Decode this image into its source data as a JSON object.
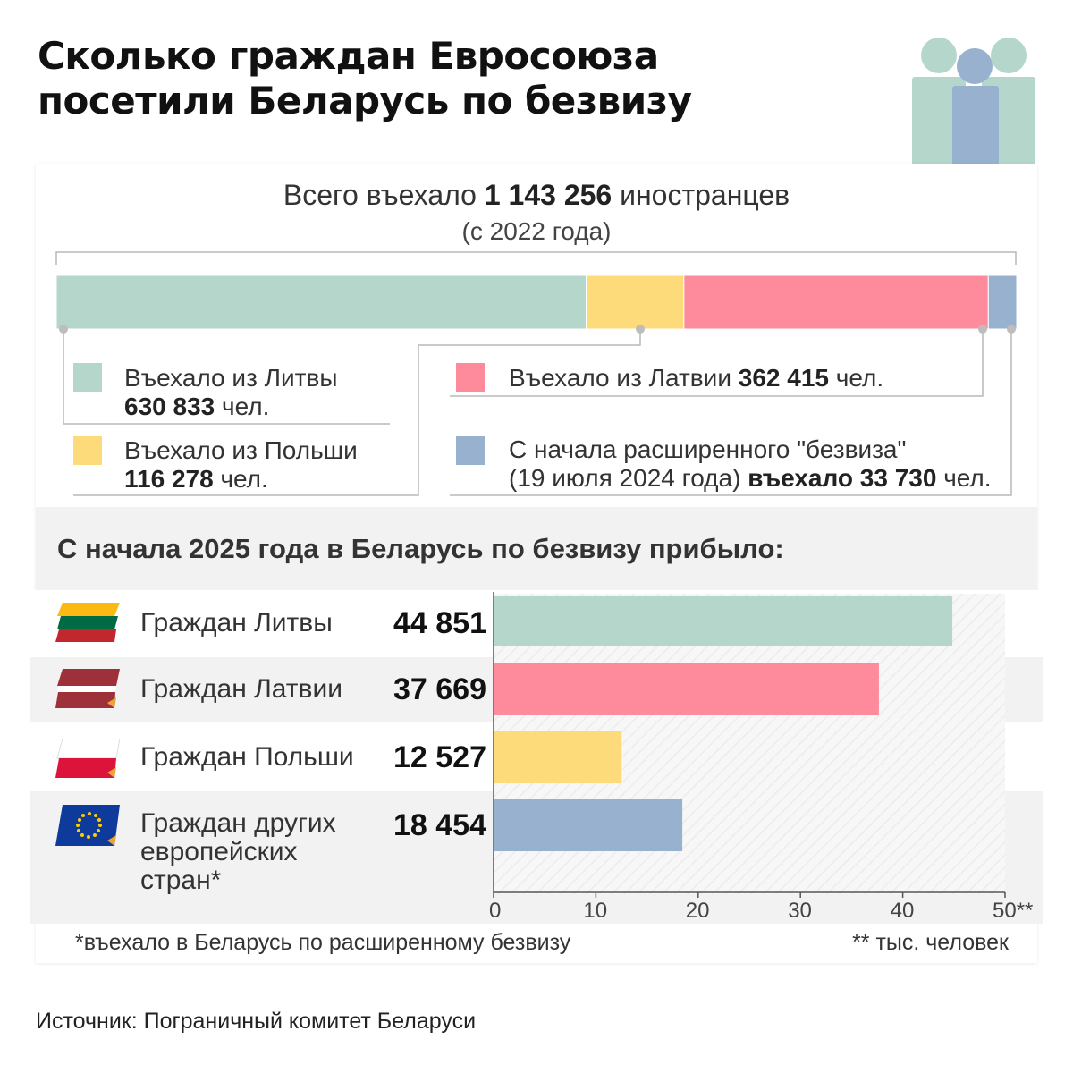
{
  "title": {
    "line1": "Сколько граждан Евросоюза",
    "line2": "посетили Беларусь по безвизу"
  },
  "total": {
    "prefix": "Всего въехало",
    "number": "1 143 256",
    "suffix": "иностранцев",
    "since": "(с 2022 года)"
  },
  "legend": {
    "lithuania": {
      "label": "Въехало из Литвы",
      "value": "630 833",
      "unit": "чел.",
      "color": "#b5d6cb"
    },
    "poland": {
      "label": "Въехало из Польши",
      "value": "116 278",
      "unit": "чел.",
      "color": "#fedb7a"
    },
    "latvia": {
      "label": "Въехало из Латвии",
      "value": "362 415",
      "unit": "чел.",
      "color": "#fd8b9c"
    },
    "extended": {
      "line1": "С начала расширенного \"безвиза\"",
      "line2_pre": "(19 июля 2024 года)",
      "line2_mid": "въехало",
      "value": "33 730",
      "unit": "чел.",
      "color": "#97b1cf"
    }
  },
  "stacked_total": 1143256,
  "section_title": "С начала 2025 года в Беларусь по безвизу прибыло:",
  "flag_icons": [
    "lithuania-flag-icon",
    "latvia-flag-icon",
    "poland-flag-icon",
    "eu-flag-icon"
  ],
  "chart_data": [
    {
      "type": "bar",
      "orientation": "horizontal",
      "stacked": true,
      "categories": [
        "Въехало из Литвы",
        "Въехало из Польши",
        "Въехало из Латвии",
        "С начала расширенного \"безвиза\""
      ],
      "values": [
        630833,
        116278,
        362415,
        33730
      ],
      "colors": [
        "#b5d6cb",
        "#fedb7a",
        "#fd8b9c",
        "#97b1cf"
      ]
    },
    {
      "type": "bar",
      "orientation": "horizontal",
      "categories": [
        "Граждан Литвы",
        "Граждан Латвии",
        "Граждан Польши",
        "Граждан других европейских стран*"
      ],
      "category_lines": [
        [
          "Граждан Литвы"
        ],
        [
          "Граждан Латвии"
        ],
        [
          "Граждан Польши"
        ],
        [
          "Граждан других",
          "европейских",
          "стран*"
        ]
      ],
      "values": [
        44.851,
        37.669,
        12.527,
        18.454
      ],
      "value_labels": [
        "44 851",
        "37 669",
        "12 527",
        "18 454"
      ],
      "colors": [
        "#b5d6cb",
        "#fd8b9c",
        "#fedb7a",
        "#97b1cf"
      ],
      "xlim": [
        0,
        50
      ],
      "ticks": [
        "0",
        "10",
        "20",
        "30",
        "40",
        "50**"
      ],
      "grid": false
    }
  ],
  "footnotes": {
    "left": "*въехало в Беларусь по расширенному безвизу",
    "right": "** тыс. человек"
  },
  "source": "Источник: Пограничный комитет Беларуси"
}
